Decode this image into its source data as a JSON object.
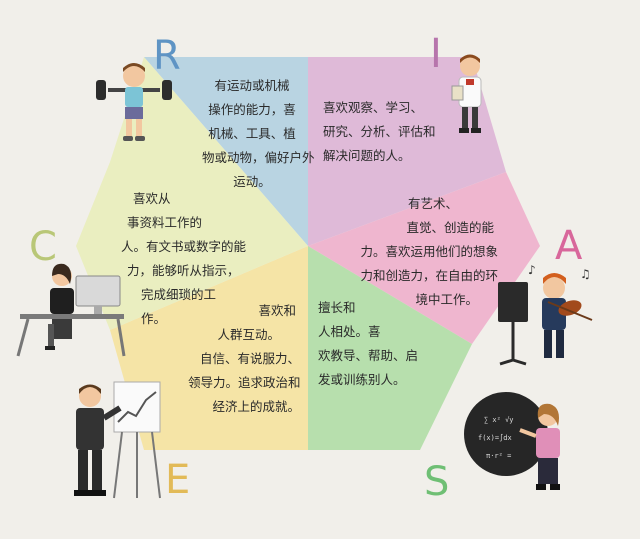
{
  "letters": {
    "R": "R",
    "I": "I",
    "A": "A",
    "S": "S",
    "E": "E",
    "C": "C"
  },
  "colors": {
    "R": "#b9d4e2",
    "I": "#dfbad8",
    "A": "#efb6cf",
    "S": "#b7dfad",
    "E": "#f5e4a6",
    "C": "#eaeec0",
    "letter_R": "#5f94c4",
    "letter_I": "#b775ac",
    "letter_A": "#d8679b",
    "letter_S": "#6fbf74",
    "letter_E": "#e2ba57",
    "letter_C": "#b9c777"
  },
  "segments": {
    "R": [
      "有运动或机械",
      "操作的能力，喜",
      "机械、工具、植",
      "物或动物，偏好户外",
      "运动。"
    ],
    "I": [
      "喜欢观察、学习、",
      "研究、分析、评估和",
      "解决问题的人。"
    ],
    "A": [
      "有艺术、",
      "直觉、创造的能",
      "力。喜欢运用他们的想象",
      "力和创造力，在自由的环",
      "境中工作。"
    ],
    "S": [
      "擅长和",
      "人相处。喜",
      "欢教导、帮助、启",
      "发或训练别人。"
    ],
    "E": [
      "喜欢和",
      "人群互动。",
      "自信、有说服力、",
      "领导力。追求政治和",
      "经济上的成就。"
    ],
    "C": [
      "喜欢从",
      "事资料工作的",
      "人。有文书或数字的能",
      "力，能够听从指示，",
      "完成细琐的工",
      "作。"
    ]
  },
  "illustrations": [
    "weightlifter-boy",
    "scientist-with-clipboard",
    "office-worker-at-computer",
    "violinist-with-music-stand",
    "presenter-with-chart",
    "teacher-at-chalkboard"
  ]
}
